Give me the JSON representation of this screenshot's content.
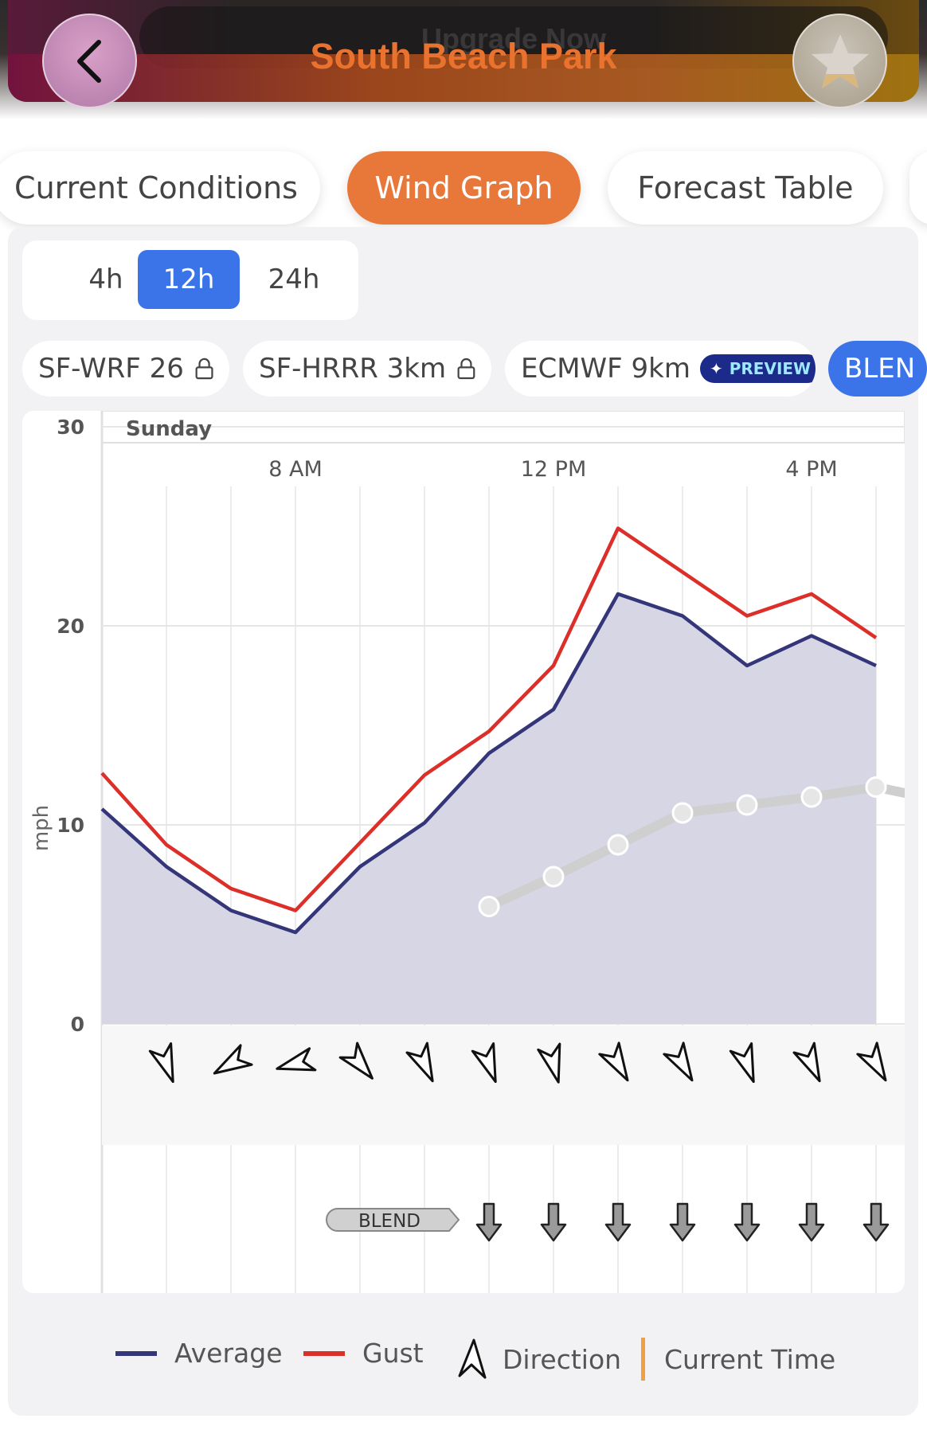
{
  "header": {
    "title": "South Beach Park",
    "background_banner_text": "Upgrade Now"
  },
  "tabs": [
    {
      "label": "Current Conditions",
      "active": false
    },
    {
      "label": "Wind Graph",
      "active": true
    },
    {
      "label": "Forecast Table",
      "active": false
    }
  ],
  "time_ranges": [
    {
      "label": "4h",
      "active": false
    },
    {
      "label": "12h",
      "active": true
    },
    {
      "label": "24h",
      "active": false
    }
  ],
  "models": [
    {
      "label": "SF-WRF 26",
      "locked": true
    },
    {
      "label": "SF-HRRR 3km",
      "locked": true
    },
    {
      "label": "ECMWF 9km",
      "badge": "PREVIEW"
    },
    {
      "label": "BLEN",
      "active": true
    }
  ],
  "colors": {
    "accent": "#e8773a",
    "selected": "#3b74e8",
    "average": "#35357a",
    "gust": "#dd2f2a",
    "area_fill": "#d6d6e4",
    "observed": "#cfcfcf",
    "current_time": "#f0a040"
  },
  "chart_data": {
    "type": "line",
    "day_label": "Sunday",
    "ylabel": "mph",
    "ylim": [
      0,
      30
    ],
    "y_ticks": [
      "30",
      "20",
      "10",
      "0"
    ],
    "x_ticks": [
      "8 AM",
      "12 PM",
      "4 PM"
    ],
    "x": [
      "5 AM",
      "6 AM",
      "7 AM",
      "8 AM",
      "9 AM",
      "10 AM",
      "11 AM",
      "12 PM",
      "1 PM",
      "2 PM",
      "3 PM",
      "4 PM",
      "5 PM"
    ],
    "series": [
      {
        "name": "Average",
        "values": [
          10.8,
          7.9,
          5.7,
          4.6,
          7.9,
          10.1,
          13.6,
          15.8,
          21.6,
          20.5,
          18.0,
          19.5,
          18.0
        ]
      },
      {
        "name": "Gust",
        "values": [
          12.6,
          9.0,
          6.8,
          5.7,
          9.1,
          12.5,
          14.7,
          18.0,
          24.9,
          22.7,
          20.5,
          21.6,
          19.4
        ]
      }
    ],
    "observed": {
      "x": [
        "11 AM",
        "12 PM",
        "1 PM",
        "2 PM",
        "3 PM",
        "4 PM",
        "5 PM",
        "5:35 PM"
      ],
      "values": [
        5.9,
        7.4,
        9.0,
        10.6,
        11.0,
        11.4,
        11.9,
        11.6
      ]
    },
    "direction_hours": [
      "6 AM",
      "7 AM",
      "8 AM",
      "9 AM",
      "10 AM",
      "11 AM",
      "12 PM",
      "1 PM",
      "2 PM",
      "3 PM",
      "4 PM",
      "5 PM"
    ],
    "direction_degrees": [
      340,
      60,
      75,
      320,
      335,
      340,
      345,
      330,
      330,
      340,
      335,
      330
    ],
    "blend_label": "BLEND",
    "blend_arrow_hours": [
      "11 AM",
      "12 PM",
      "1 PM",
      "2 PM",
      "3 PM",
      "4 PM",
      "5 PM"
    ]
  },
  "legend": [
    {
      "label": "Average"
    },
    {
      "label": "Gust"
    },
    {
      "label": "Direction"
    },
    {
      "label": "Current Time"
    }
  ]
}
